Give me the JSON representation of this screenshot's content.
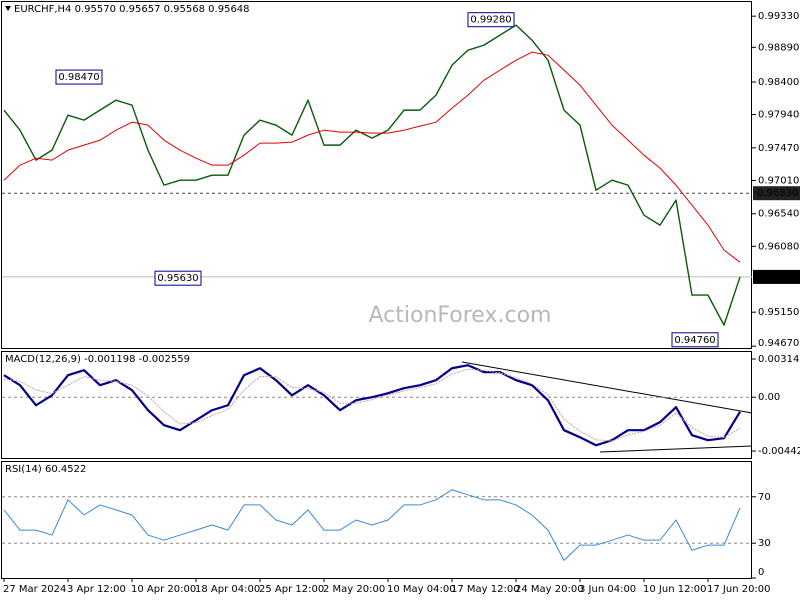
{
  "chart_data": [
    {
      "type": "line",
      "title": "EURCHF,H4  0.95570 0.95657 0.95568 0.95648",
      "watermark": "ActionForex.com",
      "ylim": [
        0.9463,
        0.9953
      ],
      "yticks": [
        {
          "value": 0.9933,
          "label": "0.99330"
        },
        {
          "value": 0.9889,
          "label": "0.98890"
        },
        {
          "value": 0.984,
          "label": "0.98400"
        },
        {
          "value": 0.9794,
          "label": "0.97940"
        },
        {
          "value": 0.9747,
          "label": "0.97470"
        },
        {
          "value": 0.9701,
          "label": "0.97010"
        },
        {
          "value": 0.9654,
          "label": "0.96540"
        },
        {
          "value": 0.9608,
          "label": "0.96080"
        },
        {
          "value": 0.9515,
          "label": "0.95150"
        },
        {
          "value": 0.9467,
          "label": "0.94670"
        }
      ],
      "series": [
        {
          "color": "#0a5a0a",
          "values": [
            0.98003,
            0.9772,
            0.97297,
            0.97438,
            0.97932,
            0.97862,
            0.98003,
            0.98144,
            0.98073,
            0.97438,
            0.96944,
            0.97014,
            0.97014,
            0.97085,
            0.97085,
            0.9765,
            0.97862,
            0.97791,
            0.9765,
            0.98144,
            0.97509,
            0.97509,
            0.9772,
            0.97607,
            0.9772,
            0.98003,
            0.98003,
            0.98215,
            0.98638,
            0.9885,
            0.98921,
            0.99062,
            0.99203,
            0.98991,
            0.98709,
            0.98003,
            0.97791,
            0.96873,
            0.97014,
            0.96944,
            0.9652,
            0.96379,
            0.96732,
            0.95391,
            0.95391,
            0.94967,
            0.95648
          ]
        },
        {
          "color": "#e00000",
          "values": [
            0.97014,
            0.97226,
            0.97325,
            0.97297,
            0.97438,
            0.97509,
            0.97579,
            0.9772,
            0.97833,
            0.97791,
            0.97579,
            0.97438,
            0.97325,
            0.97226,
            0.97226,
            0.97367,
            0.97537,
            0.97537,
            0.97551,
            0.9765,
            0.9772,
            0.97692,
            0.97692,
            0.97678,
            0.97678,
            0.9772,
            0.97777,
            0.97833,
            0.98031,
            0.98215,
            0.98426,
            0.98568,
            0.98709,
            0.98822,
            0.98779,
            0.98568,
            0.98356,
            0.98073,
            0.97791,
            0.97579,
            0.97367,
            0.97184,
            0.96944,
            0.96661,
            0.96379,
            0.96026,
            0.95856
          ]
        }
      ],
      "annotations": [
        {
          "value": 0.9847,
          "label": "0.98470"
        },
        {
          "value": 0.9563,
          "label": "0.95630"
        },
        {
          "value": 0.9928,
          "label": "0.99280"
        },
        {
          "value": 0.9476,
          "label": "0.94760"
        }
      ],
      "hlines": [
        {
          "value": 0.9683,
          "label": "0.96830",
          "style": "dashed"
        },
        {
          "value": 0.95648,
          "label": "0.95648",
          "style": "solid"
        }
      ]
    },
    {
      "type": "line",
      "title": "MACD(12,26,9) -0.001198 -0.002559",
      "zero_line": true,
      "ylim": [
        -0.005078,
        0.003717
      ],
      "yticks": [
        0.003142,
        {
          "value": 0,
          "label": "0.00"
        },
        -0.00442
      ],
      "series": [
        {
          "color": "#00008b",
          "values": [
            0.00181,
            0.00099,
            -0.00066,
            0.00016,
            0.00181,
            0.00222,
            0.00099,
            0.0014,
            0.00058,
            -0.00107,
            -0.0023,
            -0.00271,
            -0.00189,
            -0.00107,
            -0.00066,
            0.00181,
            0.00238,
            0.0014,
            0.00016,
            0.00099,
            0.00016,
            -0.00107,
            -0.00025,
            0,
            0.00033,
            0.00074,
            0.00099,
            0.0014,
            0.00238,
            0.00263,
            0.00206,
            0.00206,
            0.0014,
            0.00099,
            -0.00025,
            -0.00271,
            -0.00329,
            -0.00395,
            -0.00353,
            -0.00271,
            -0.00271,
            -0.00205,
            -0.00082,
            -0.00312,
            -0.00353,
            -0.00337,
            -0.0012
          ]
        },
        {
          "color": "#c9a3a3",
          "values": [
            0.0015,
            0.0013,
            0.0006,
            0.0003,
            0.001,
            0.0017,
            0.0014,
            0.0013,
            0.001,
            0.0001,
            -0.0012,
            -0.0022,
            -0.0021,
            -0.0015,
            -0.001,
            0.0006,
            0.0017,
            0.0017,
            0.0008,
            0.0007,
            0.0004,
            -0.0005,
            -0.0005,
            -0.0002,
            0.0002,
            0.0005,
            0.0008,
            0.0011,
            0.0019,
            0.0023,
            0.0022,
            0.002,
            0.0016,
            0.0011,
            0.0002,
            -0.0018,
            -0.0028,
            -0.0035,
            -0.0036,
            -0.0031,
            -0.0028,
            -0.0023,
            -0.0013,
            -0.0025,
            -0.0032,
            -0.0033,
            -0.00256
          ]
        }
      ]
    },
    {
      "type": "line",
      "title": "RSI(14) 60.4522",
      "grid": "dashed",
      "ylim": [
        0,
        100
      ],
      "yticks": [
        70,
        30,
        0
      ],
      "categories": [
        "27 Mar 2024",
        null,
        null,
        null,
        "3 Apr 12:00",
        null,
        null,
        null,
        "10 Apr 20:00",
        null,
        null,
        null,
        "18 Apr 04:00",
        null,
        null,
        null,
        "25 Apr 12:00",
        null,
        null,
        null,
        "2 May 20:00",
        null,
        null,
        null,
        "10 May 04:00",
        null,
        null,
        null,
        "17 May 12:00",
        null,
        null,
        null,
        "24 May 20:00",
        null,
        null,
        null,
        "3 Jun 04:00",
        null,
        null,
        null,
        "10 Jun 12:00",
        null,
        null,
        null,
        "17 Jun 20:00",
        null,
        null
      ],
      "series": [
        {
          "color": "#3a8ad6",
          "values": [
            58.7,
            41.3,
            41.3,
            37,
            67.4,
            54.3,
            63,
            58.7,
            54.3,
            37,
            32.6,
            37,
            41.3,
            45.7,
            41.3,
            63,
            63,
            50,
            45.7,
            58.7,
            41.3,
            41.3,
            50,
            45.7,
            50,
            63,
            63,
            67.4,
            76.1,
            71.7,
            67.4,
            67.4,
            63,
            54.3,
            41.3,
            15.2,
            28.3,
            28.3,
            32.6,
            37,
            32.6,
            32.6,
            50,
            23.9,
            28.3,
            28.3,
            60.5
          ]
        }
      ]
    }
  ]
}
